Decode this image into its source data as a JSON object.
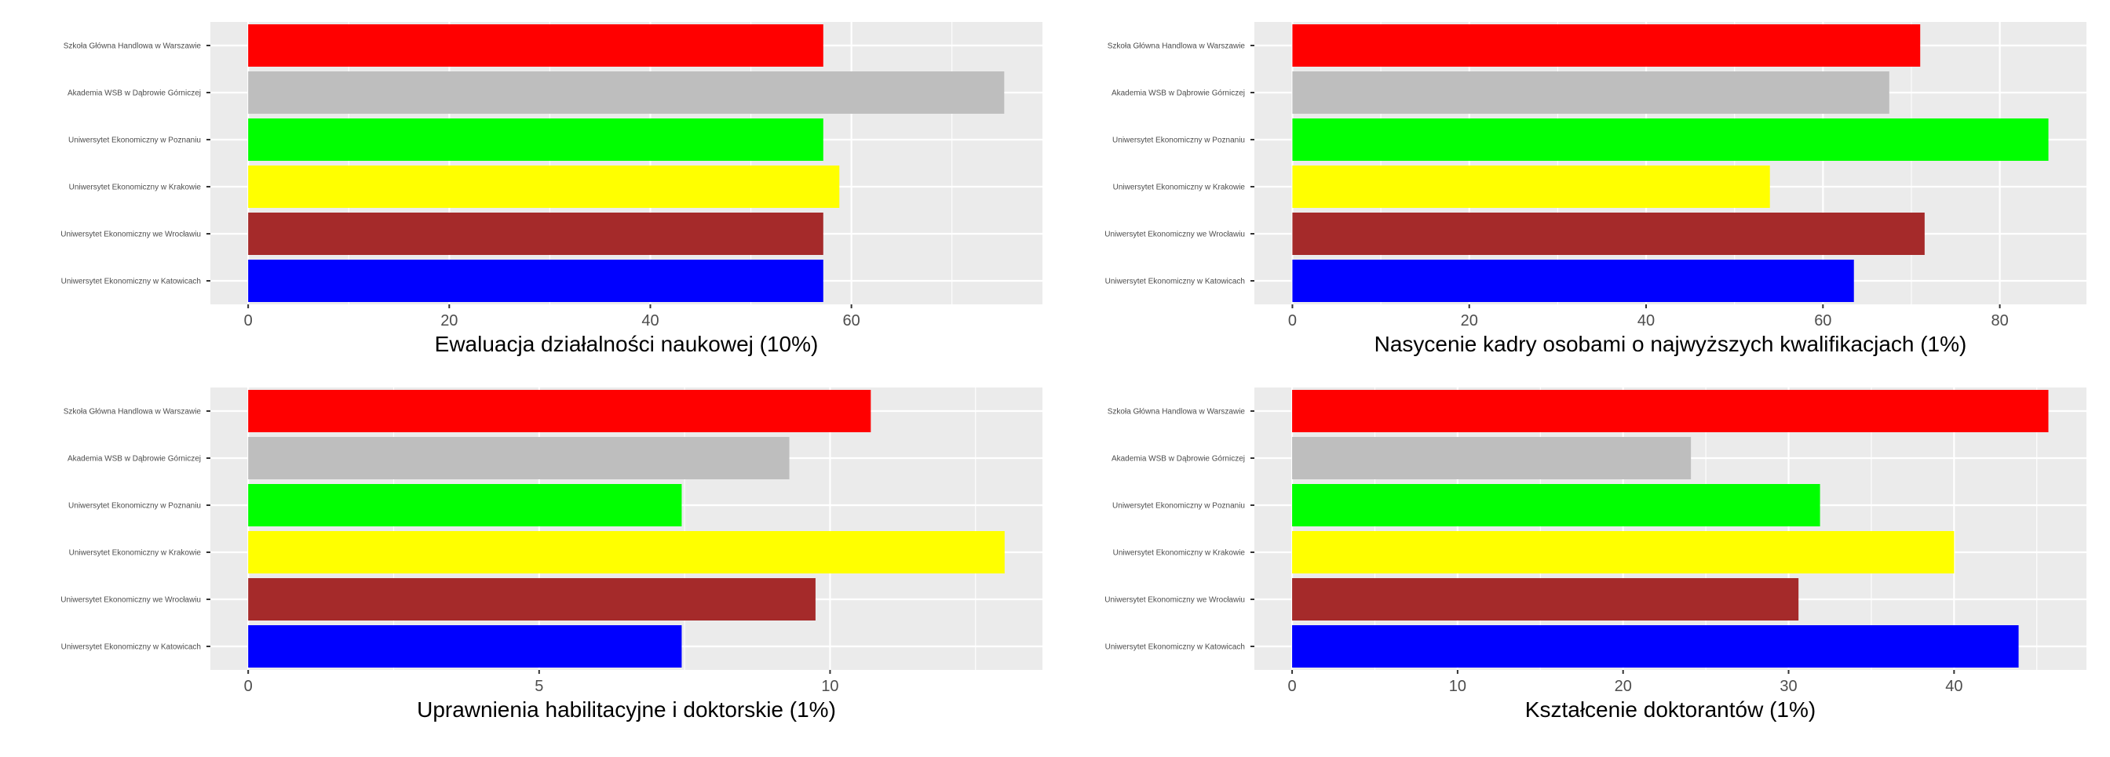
{
  "chart_data": [
    {
      "type": "bar",
      "orientation": "horizontal",
      "xlabel": "Ewaluacja działalności naukowej (10%)",
      "categories": [
        "Szkoła Główna Handlowa w Warszawie",
        "Akademia WSB w Dąbrowie Górniczej",
        "Uniwersytet Ekonomiczny w Poznaniu",
        "Uniwersytet Ekonomiczny w Krakowie",
        "Uniwersytet Ekonomiczny we Wrocławiu",
        "Uniwersytet Ekonomiczny w Katowicach"
      ],
      "values": [
        57.2,
        75.2,
        57.2,
        58.8,
        57.2,
        57.2
      ],
      "colors": [
        "#ff0000",
        "#bebebe",
        "#00ff00",
        "#ffff00",
        "#a52a2a",
        "#0000ff"
      ],
      "xlim": [
        -3.76,
        79.0
      ],
      "xticks": [
        0,
        20,
        40,
        60
      ],
      "grid": true
    },
    {
      "type": "bar",
      "orientation": "horizontal",
      "xlabel": "Nasycenie kadry osobami o najwyższych kwalifikacjach (1%)",
      "categories": [
        "Szkoła Główna Handlowa w Warszawie",
        "Akademia WSB w Dąbrowie Górniczej",
        "Uniwersytet Ekonomiczny w Poznaniu",
        "Uniwersytet Ekonomiczny w Krakowie",
        "Uniwersytet Ekonomiczny we Wrocławiu",
        "Uniwersytet Ekonomiczny w Katowicach"
      ],
      "values": [
        71.0,
        67.5,
        85.5,
        54.0,
        71.5,
        63.5
      ],
      "colors": [
        "#ff0000",
        "#bebebe",
        "#00ff00",
        "#ffff00",
        "#a52a2a",
        "#0000ff"
      ],
      "xlim": [
        -4.3,
        89.8
      ],
      "xticks": [
        0,
        20,
        40,
        60,
        80
      ],
      "grid": true
    },
    {
      "type": "bar",
      "orientation": "horizontal",
      "xlabel": "Uprawnienia habilitacyjne i doktorskie (1%)",
      "categories": [
        "Szkoła Główna Handlowa w Warszawie",
        "Akademia WSB w Dąbrowie Górniczej",
        "Uniwersytet Ekonomiczny w Poznaniu",
        "Uniwersytet Ekonomiczny w Krakowie",
        "Uniwersytet Ekonomiczny we Wrocławiu",
        "Uniwersytet Ekonomiczny w Katowicach"
      ],
      "values": [
        10.7,
        9.3,
        7.45,
        13.0,
        9.75,
        7.45
      ],
      "colors": [
        "#ff0000",
        "#bebebe",
        "#00ff00",
        "#ffff00",
        "#a52a2a",
        "#0000ff"
      ],
      "xlim": [
        -0.65,
        13.65
      ],
      "xticks": [
        0,
        5,
        10
      ],
      "grid": true
    },
    {
      "type": "bar",
      "orientation": "horizontal",
      "xlabel": "Kształcenie doktorantów (1%)",
      "categories": [
        "Szkoła Główna Handlowa w Warszawie",
        "Akademia WSB w Dąbrowie Górniczej",
        "Uniwersytet Ekonomiczny w Poznaniu",
        "Uniwersytet Ekonomiczny w Krakowie",
        "Uniwersytet Ekonomiczny we Wrocławiu",
        "Uniwersytet Ekonomiczny w Katowicach"
      ],
      "values": [
        45.7,
        24.1,
        31.9,
        40.0,
        30.6,
        43.9
      ],
      "colors": [
        "#ff0000",
        "#bebebe",
        "#00ff00",
        "#ffff00",
        "#a52a2a",
        "#0000ff"
      ],
      "xlim": [
        -2.28,
        48.0
      ],
      "xticks": [
        0,
        10,
        20,
        30,
        40
      ],
      "grid": true
    }
  ],
  "theme": {
    "panel_background": "#ebebeb",
    "grid_color": "#ffffff",
    "text_color": "#000000",
    "tick_label_color": "#4d4d4d",
    "tick_color": "#333333"
  }
}
